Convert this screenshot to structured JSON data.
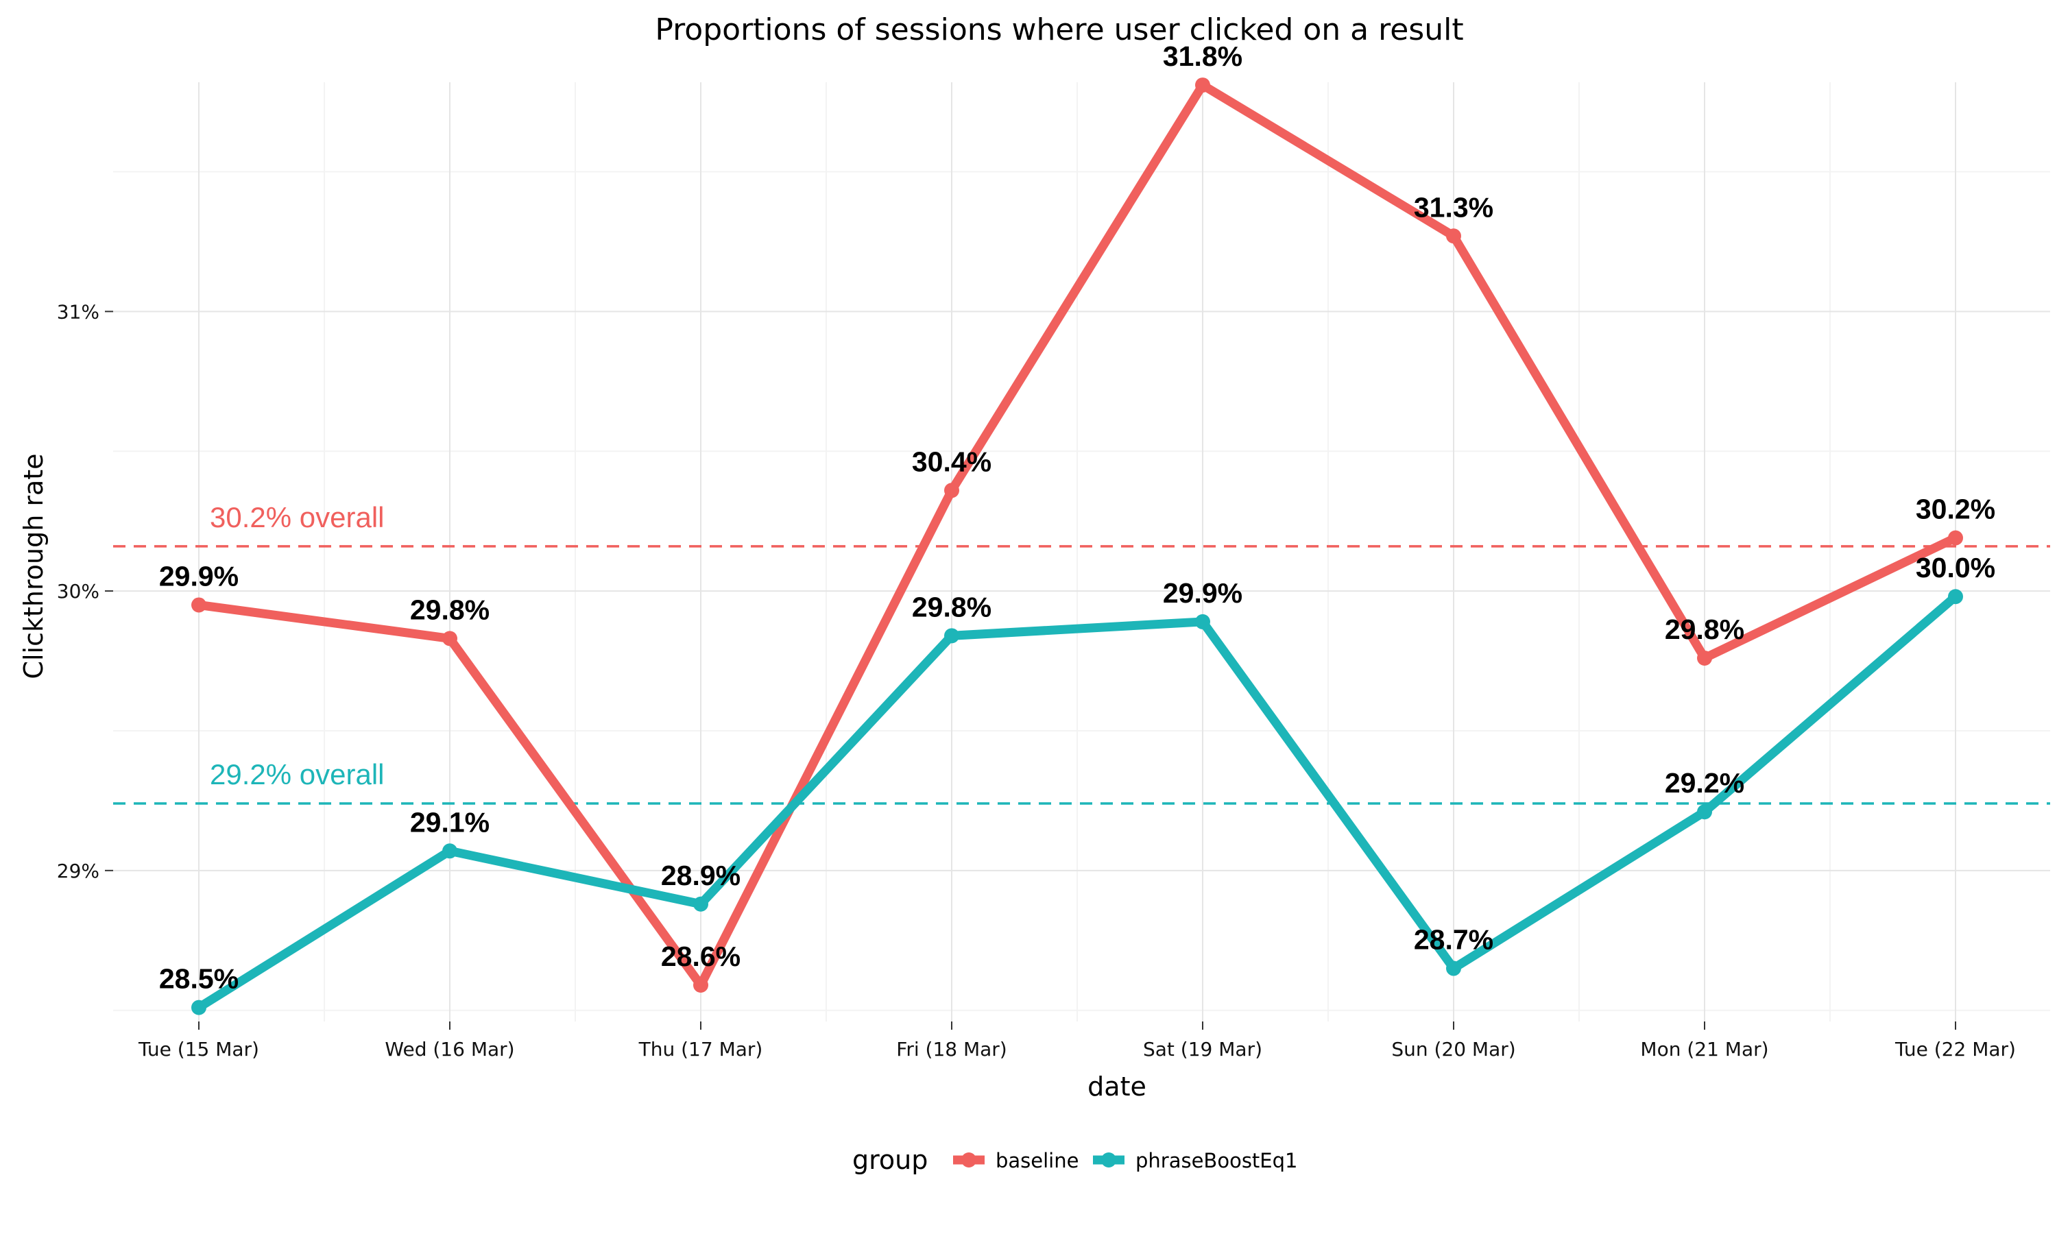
{
  "chart_data": {
    "type": "line",
    "title": "Proportions of sessions where user clicked on a result",
    "xlabel": "date",
    "ylabel": "Clickthrough rate",
    "categories": [
      "Tue (15 Mar)",
      "Wed (16 Mar)",
      "Thu (17 Mar)",
      "Fri (18 Mar)",
      "Sat (19 Mar)",
      "Sun (20 Mar)",
      "Mon (21 Mar)",
      "Tue (22 Mar)"
    ],
    "y_ticks": [
      29,
      30,
      31
    ],
    "y_tick_labels": [
      "29%",
      "30%",
      "31%"
    ],
    "ylim": [
      28.46,
      31.82
    ],
    "grid": true,
    "legend": {
      "title": "group",
      "position": "bottom"
    },
    "series": [
      {
        "name": "baseline",
        "color": "#F0605D",
        "values": [
          29.95,
          29.83,
          28.59,
          30.36,
          31.81,
          31.27,
          29.76,
          30.19
        ],
        "labels": [
          "29.9%",
          "29.8%",
          "28.6%",
          "30.4%",
          "31.8%",
          "31.3%",
          "29.8%",
          "30.2%"
        ]
      },
      {
        "name": "phraseBoostEq1",
        "color": "#1DB5B8",
        "values": [
          28.51,
          29.07,
          28.88,
          29.84,
          29.89,
          28.65,
          29.21,
          29.98
        ],
        "labels": [
          "28.5%",
          "29.1%",
          "28.9%",
          "29.8%",
          "29.9%",
          "28.7%",
          "29.2%",
          "30.0%"
        ]
      }
    ],
    "reference_lines": [
      {
        "series": "baseline",
        "value": 30.16,
        "label": "30.2% overall",
        "color": "#F0605D"
      },
      {
        "series": "phraseBoostEq1",
        "value": 29.24,
        "label": "29.2% overall",
        "color": "#1DB5B8"
      }
    ]
  }
}
